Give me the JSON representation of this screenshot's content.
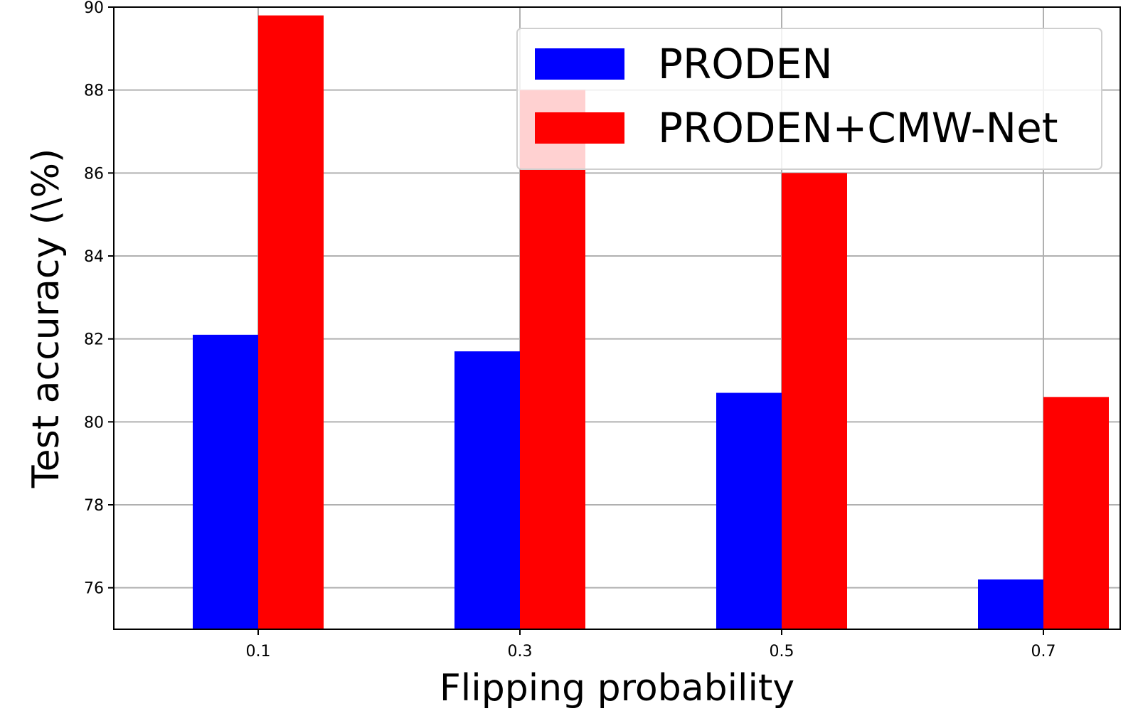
{
  "chart_data": {
    "type": "bar",
    "categories": [
      "0.1",
      "0.3",
      "0.5",
      "0.7"
    ],
    "series": [
      {
        "name": "PRODEN",
        "color": "#0000ff",
        "values": [
          82.1,
          81.7,
          80.7,
          76.2
        ]
      },
      {
        "name": "PRODEN+CMW-Net",
        "color": "#ff0000",
        "values": [
          89.8,
          88.0,
          86.0,
          80.6
        ]
      }
    ],
    "title": "",
    "xlabel": "Flipping probability",
    "ylabel": "Test accuracy (\\%)",
    "ylim": [
      75,
      90
    ],
    "yticks": [
      "76",
      "78",
      "80",
      "82",
      "84",
      "86",
      "88",
      "90"
    ],
    "grid": true,
    "legend_position": "top-right"
  }
}
